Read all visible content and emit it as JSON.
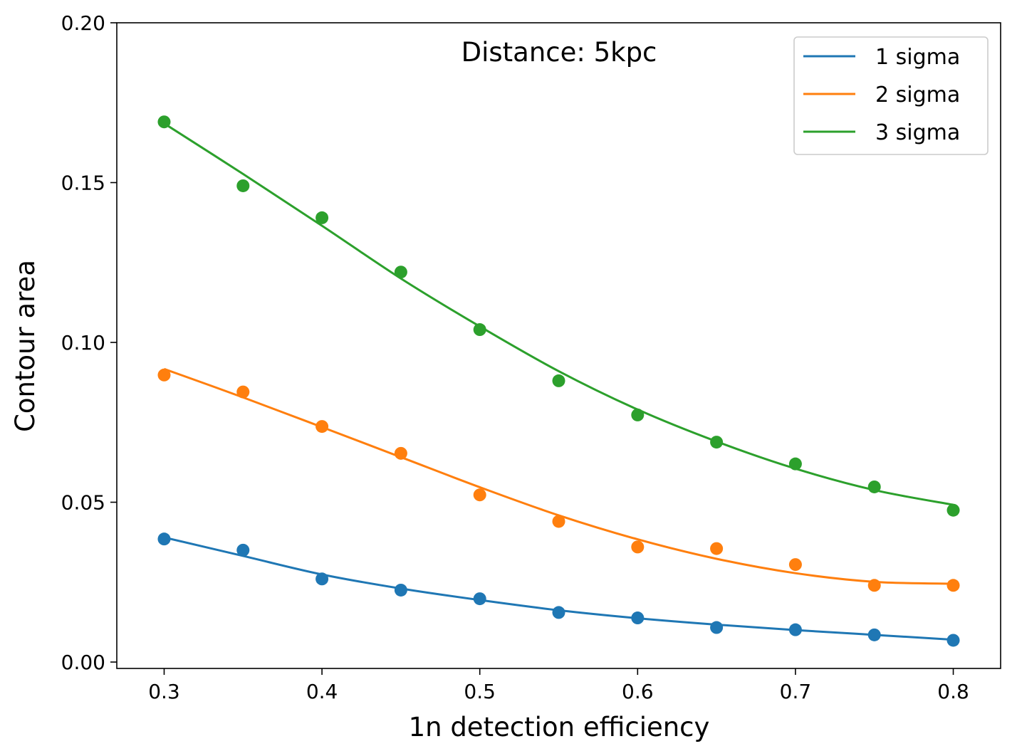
{
  "chart_data": {
    "type": "scatter",
    "title": "Distance: 5kpc",
    "xlabel": "1n detection efficiency",
    "ylabel": "Contour area",
    "xlim": [
      0.27,
      0.83
    ],
    "ylim": [
      -0.002,
      0.2
    ],
    "xticks": [
      0.3,
      0.4,
      0.5,
      0.6,
      0.7,
      0.8
    ],
    "xtick_labels": [
      "0.3",
      "0.4",
      "0.5",
      "0.6",
      "0.7",
      "0.8"
    ],
    "yticks": [
      0.0,
      0.05,
      0.1,
      0.15,
      0.2
    ],
    "ytick_labels": [
      "0.00",
      "0.05",
      "0.10",
      "0.15",
      "0.20"
    ],
    "grid": false,
    "legend_position": "top-right",
    "x": [
      0.3,
      0.35,
      0.4,
      0.45,
      0.5,
      0.55,
      0.6,
      0.65,
      0.7,
      0.75,
      0.8
    ],
    "series": [
      {
        "name": "1 sigma",
        "color": "#1f77b4",
        "points": [
          0.0385,
          0.035,
          0.026,
          0.0225,
          0.0198,
          0.0155,
          0.0138,
          0.0108,
          0.0101,
          0.0085,
          0.0068
        ],
        "fit": [
          0.039,
          0.0332,
          0.0274,
          0.023,
          0.0194,
          0.0162,
          0.0137,
          0.0117,
          0.01,
          0.0085,
          0.007
        ]
      },
      {
        "name": "2 sigma",
        "color": "#ff7f0e",
        "points": [
          0.0898,
          0.0845,
          0.0737,
          0.0653,
          0.0523,
          0.044,
          0.036,
          0.0355,
          0.0305,
          0.024,
          0.024
        ],
        "fit": [
          0.0917,
          0.0828,
          0.0735,
          0.0641,
          0.0547,
          0.0459,
          0.0384,
          0.0323,
          0.0278,
          0.0251,
          0.0245
        ]
      },
      {
        "name": "3 sigma",
        "color": "#2ca02c",
        "points": [
          0.169,
          0.149,
          0.139,
          0.122,
          0.104,
          0.088,
          0.0773,
          0.0688,
          0.062,
          0.0548,
          0.0475
        ],
        "fit": [
          0.1685,
          0.1527,
          0.1365,
          0.12,
          0.105,
          0.091,
          0.079,
          0.069,
          0.0605,
          0.0538,
          0.0492
        ]
      }
    ]
  }
}
